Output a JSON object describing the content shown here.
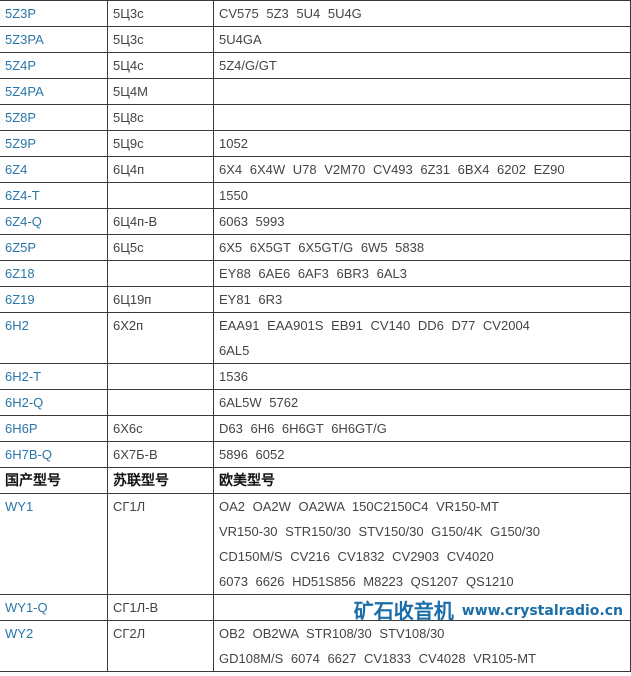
{
  "header": {
    "col1": "国产型号",
    "col2": "苏联型号",
    "col3": "欧美型号"
  },
  "rows_top": [
    {
      "cn": "5Z3P",
      "su": "5Ц3с",
      "eu": [
        "CV575 5Z3 5U4 5U4G"
      ]
    },
    {
      "cn": "5Z3PA",
      "su": "5Ц3с",
      "eu": [
        "5U4GA"
      ]
    },
    {
      "cn": "5Z4P",
      "su": "5Ц4с",
      "eu": [
        "5Z4/G/GT"
      ]
    },
    {
      "cn": "5Z4PA",
      "su": "5Ц4М",
      "eu": [
        ""
      ]
    },
    {
      "cn": "5Z8P",
      "su": "5Ц8с",
      "eu": [
        ""
      ]
    },
    {
      "cn": "5Z9P",
      "su": "5Ц9с",
      "eu": [
        "1052"
      ]
    },
    {
      "cn": "6Z4",
      "su": "6Ц4п",
      "eu": [
        "6X4 6X4W U78 V2M70 CV493 6Z31 6BX4 6202 EZ90"
      ]
    },
    {
      "cn": "6Z4-T",
      "su": "",
      "eu": [
        "1550"
      ]
    },
    {
      "cn": "6Z4-Q",
      "su": "6Ц4п-В",
      "eu": [
        "6063 5993"
      ]
    },
    {
      "cn": "6Z5P",
      "su": "6Ц5с",
      "eu": [
        "6X5 6X5GT 6X5GT/G 6W5 5838"
      ]
    },
    {
      "cn": "6Z18",
      "su": "",
      "eu": [
        "EY88 6AE6 6AF3 6BR3 6AL3"
      ]
    },
    {
      "cn": "6Z19",
      "su": "6Ц19п",
      "eu": [
        "EY81 6R3"
      ]
    },
    {
      "cn": "6H2",
      "su": "6Х2п",
      "eu": [
        "EAA91 EAA901S EB91 CV140 DD6 D77 CV2004",
        "6AL5"
      ]
    },
    {
      "cn": "6H2-T",
      "su": "",
      "eu": [
        "1536"
      ]
    },
    {
      "cn": "6H2-Q",
      "su": "",
      "eu": [
        "6AL5W 5762"
      ]
    },
    {
      "cn": "6H6P",
      "su": "6Х6с",
      "eu": [
        "D63 6H6 6H6GT 6H6GT/G"
      ]
    },
    {
      "cn": "6H7B-Q",
      "su": "6Х7Б-В",
      "eu": [
        "5896 6052"
      ]
    }
  ],
  "rows_bottom": [
    {
      "cn": "WY1",
      "su": "СГ1Л",
      "eu": [
        "OA2 OA2W OA2WA 150C2150C4 VR150-MT",
        "VR150-30 STR150/30 STV150/30 G150/4K G150/30",
        "CD150M/S CV216 CV1832 CV2903 CV4020",
        "6073 6626 HD51S856 M8223 QS1207 QS1210"
      ]
    },
    {
      "cn": "WY1-Q",
      "su": "СГ1Л-В",
      "eu": [
        ""
      ]
    },
    {
      "cn": "WY2",
      "su": "СГ2Л",
      "eu": [
        "OB2 OB2WA STR108/30 STV108/30",
        "GD108M/S 6074 6627 CV1833 CV4028 VR105-MT"
      ]
    }
  ],
  "watermark": {
    "title": "矿石收音机",
    "url": "www.crystalradio.cn",
    "color": "#1b6ea8"
  },
  "colors": {
    "link": "#2a76a8",
    "text": "#444444",
    "border": "#3a3a3a"
  }
}
